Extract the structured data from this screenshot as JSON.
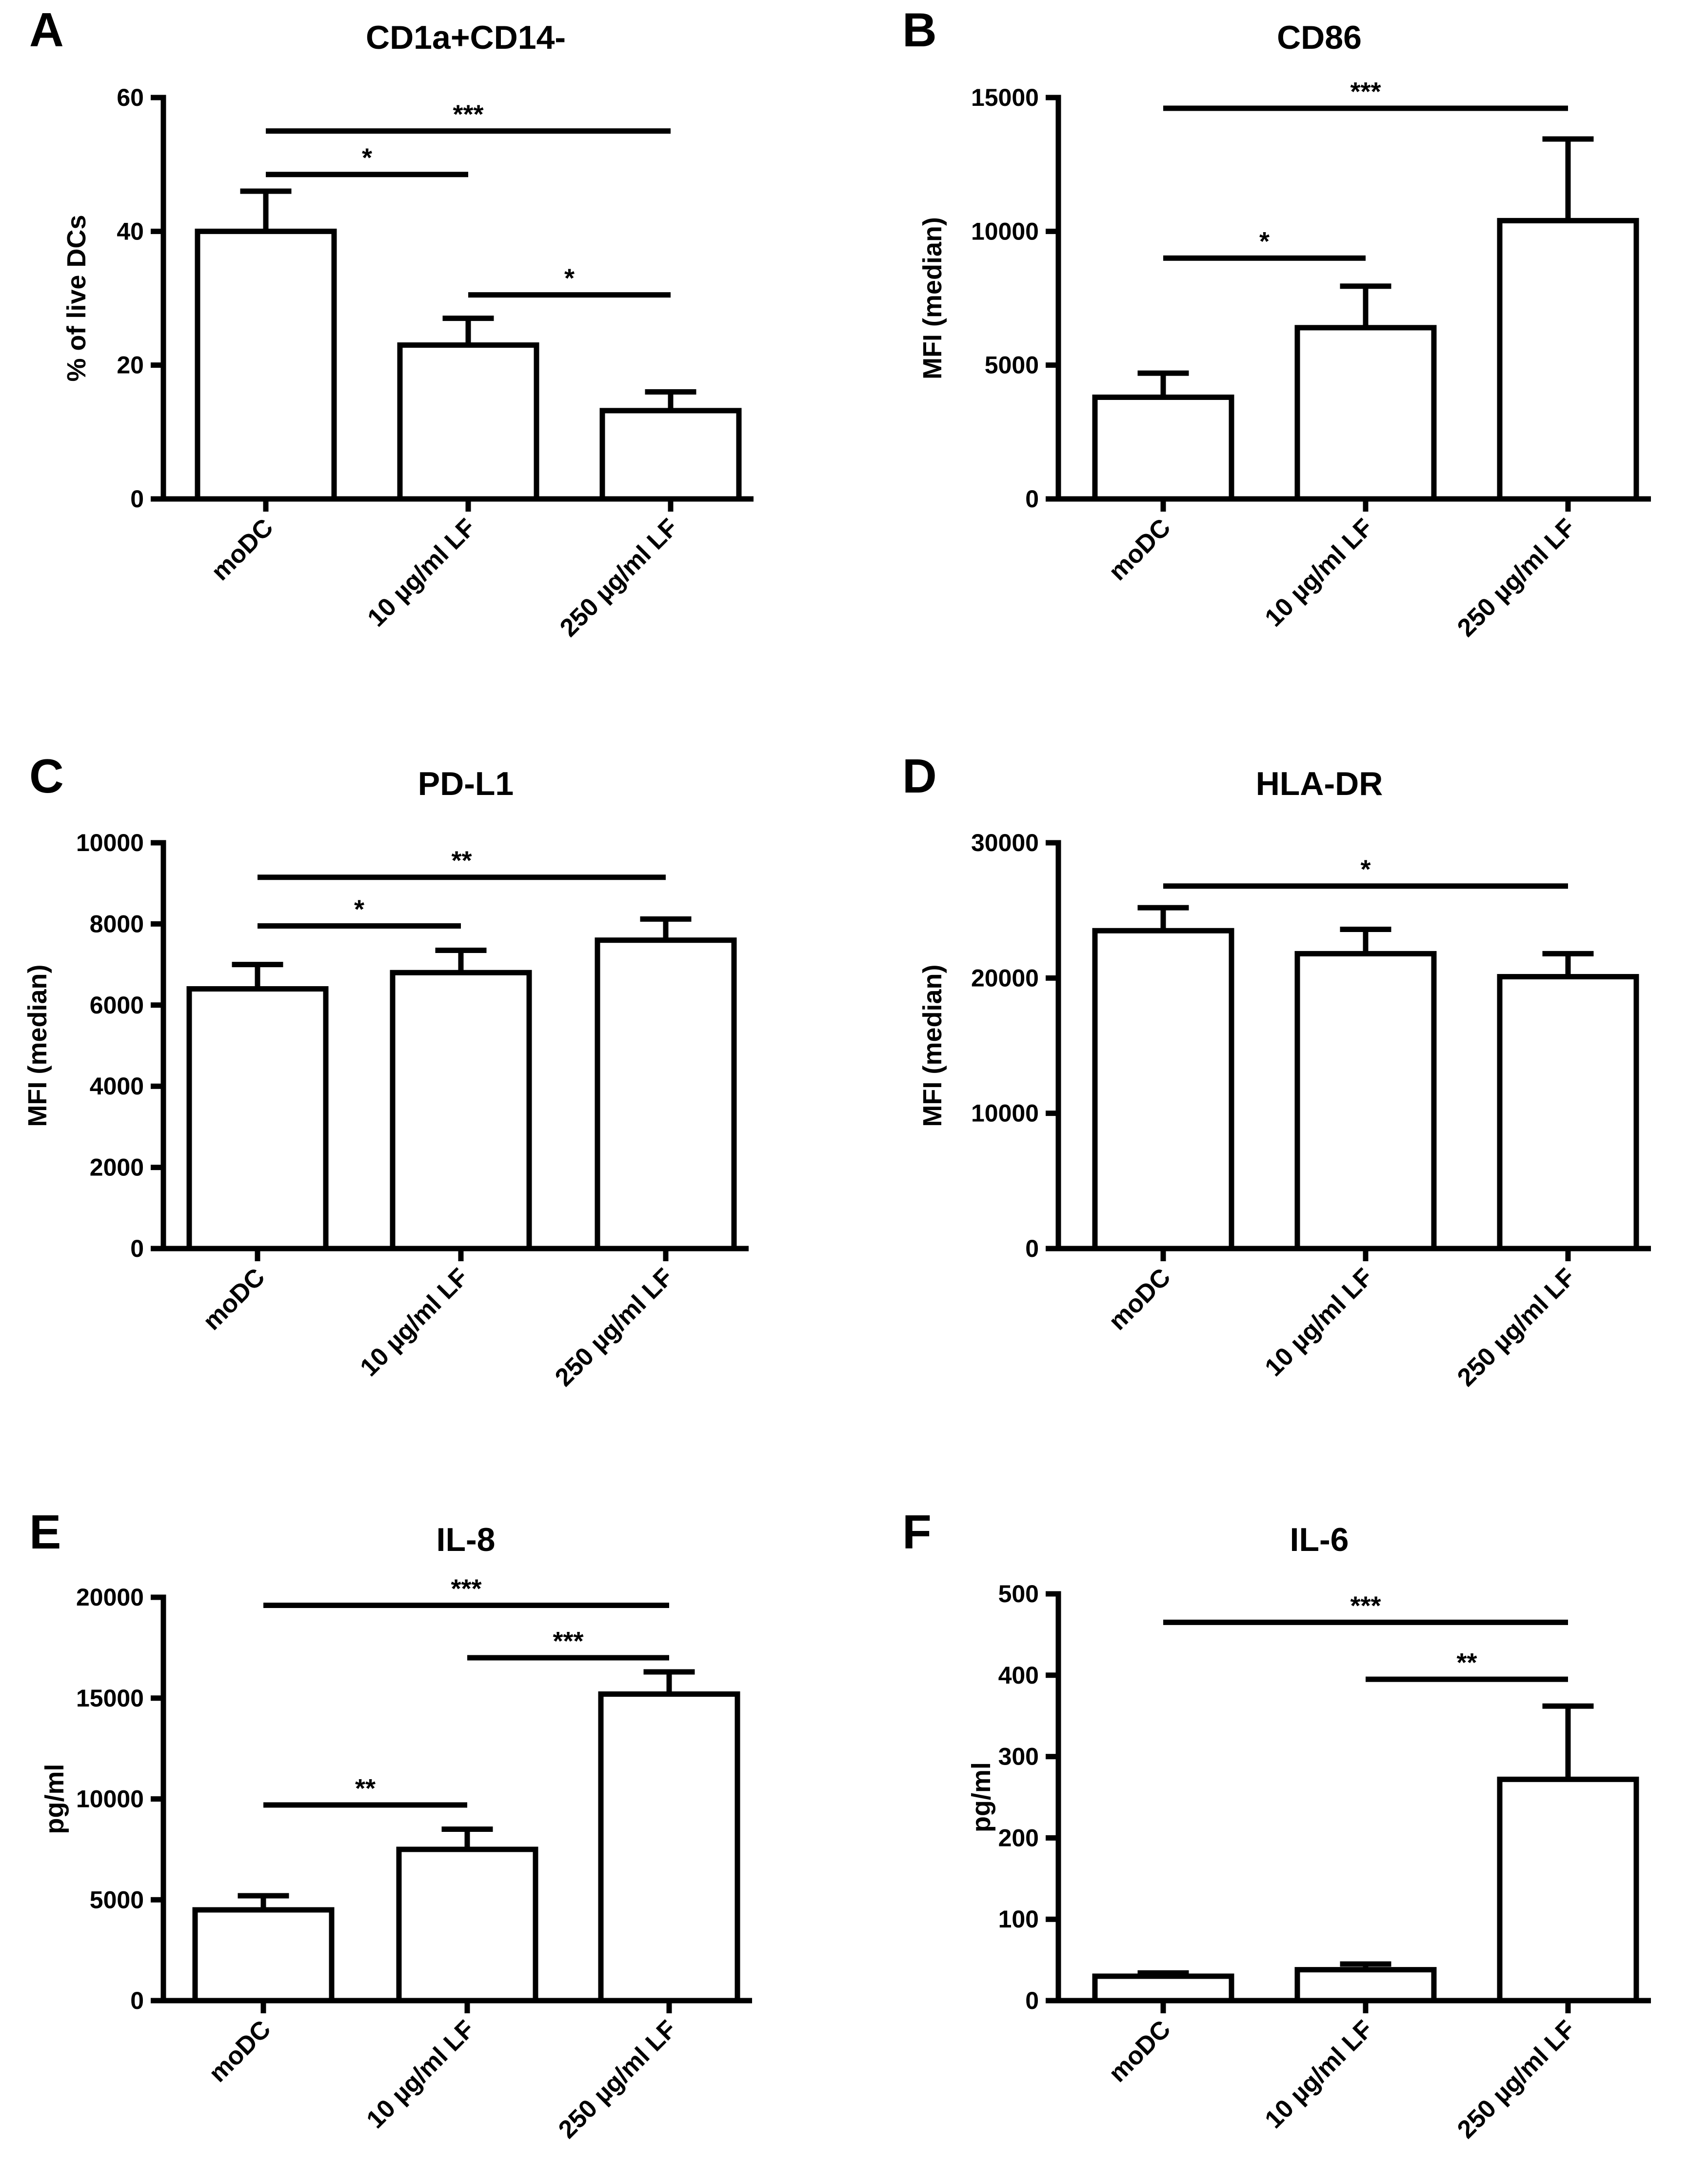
{
  "figure": {
    "colors": {
      "axis": "#000000",
      "bar_fill": "#ffffff",
      "bar_stroke": "#000000",
      "background": "#ffffff"
    }
  },
  "chart_data": [
    {
      "panel": "A",
      "type": "bar",
      "title": "CD1a+CD14-",
      "ylabel": "% of live DCs",
      "categories": [
        "moDC",
        "10  µg/ml LF",
        "250 µg/ml LF"
      ],
      "values": [
        40,
        23,
        13.2
      ],
      "errors": [
        6,
        4,
        2.8
      ],
      "ylim": [
        0,
        60
      ],
      "yticks": [
        0,
        20,
        40,
        60
      ],
      "ytick_labels": [
        "0",
        "20",
        "40",
        "60"
      ],
      "significance": [
        {
          "from": 0,
          "to": 2,
          "y": 55,
          "label": "***"
        },
        {
          "from": 0,
          "to": 1,
          "y": 48.5,
          "label": "*"
        },
        {
          "from": 1,
          "to": 2,
          "y": 30.5,
          "label": "*"
        }
      ]
    },
    {
      "panel": "B",
      "type": "bar",
      "title": "CD86",
      "ylabel": "MFI (median)",
      "categories": [
        "moDC",
        "10 µg/ml LF",
        "250 µg/ml LF"
      ],
      "values": [
        3800,
        6400,
        10400
      ],
      "errors": [
        900,
        1550,
        3050
      ],
      "ylim": [
        0,
        15000
      ],
      "yticks": [
        0,
        5000,
        10000,
        15000
      ],
      "ytick_labels": [
        "0",
        "5000",
        "10000",
        "15000"
      ],
      "significance": [
        {
          "from": 0,
          "to": 2,
          "y": 14600,
          "label": "***"
        },
        {
          "from": 0,
          "to": 1,
          "y": 9000,
          "label": "*"
        }
      ]
    },
    {
      "panel": "C",
      "type": "bar",
      "title": "PD-L1",
      "ylabel": "MFI (median)",
      "categories": [
        "moDC",
        "10 µg/ml LF",
        "250 µg/ml LF"
      ],
      "values": [
        6400,
        6800,
        7600
      ],
      "errors": [
        600,
        550,
        520
      ],
      "ylim": [
        0,
        10000
      ],
      "yticks": [
        0,
        2000,
        4000,
        6000,
        8000,
        10000
      ],
      "ytick_labels": [
        "0",
        "2000",
        "4000",
        "6000",
        "8000",
        "10000"
      ],
      "significance": [
        {
          "from": 0,
          "to": 2,
          "y": 9150,
          "label": "**"
        },
        {
          "from": 0,
          "to": 1,
          "y": 7950,
          "label": "*"
        }
      ]
    },
    {
      "panel": "D",
      "type": "bar",
      "title": "HLA-DR",
      "ylabel": "MFI (median)",
      "categories": [
        "moDC",
        "10 µg/ml LF",
        "250 µg/ml LF"
      ],
      "values": [
        23500,
        21800,
        20100
      ],
      "errors": [
        1700,
        1800,
        1700
      ],
      "ylim": [
        0,
        30000
      ],
      "yticks": [
        0,
        10000,
        20000,
        30000
      ],
      "ytick_labels": [
        "0",
        "10000",
        "20000",
        "30000"
      ],
      "significance": [
        {
          "from": 0,
          "to": 2,
          "y": 26800,
          "label": "*"
        }
      ]
    },
    {
      "panel": "E",
      "type": "bar",
      "title": "IL-8",
      "ylabel": "pg/ml",
      "categories": [
        "moDC",
        "10 µg/ml LF",
        "250 µg/ml LF"
      ],
      "values": [
        4500,
        7500,
        15200
      ],
      "errors": [
        700,
        1000,
        1100
      ],
      "ylim": [
        0,
        20000
      ],
      "yticks": [
        0,
        5000,
        10000,
        15000,
        20000
      ],
      "ytick_labels": [
        "0",
        "5000",
        "10000",
        "15000",
        "20000"
      ],
      "significance": [
        {
          "from": 0,
          "to": 2,
          "y": 19600,
          "label": "***"
        },
        {
          "from": 1,
          "to": 2,
          "y": 17000,
          "label": "***"
        },
        {
          "from": 0,
          "to": 1,
          "y": 9700,
          "label": "**"
        }
      ]
    },
    {
      "panel": "F",
      "type": "bar",
      "title": "IL-6",
      "ylabel": "pg/ml",
      "categories": [
        "moDC",
        "10 µg/ml LF",
        "250 µg/ml LF"
      ],
      "values": [
        30,
        38,
        272
      ],
      "errors": [
        4,
        7,
        90
      ],
      "ylim": [
        0,
        500
      ],
      "yticks": [
        0,
        100,
        200,
        300,
        400,
        500
      ],
      "ytick_labels": [
        "0",
        "100",
        "200",
        "300",
        "400",
        "500"
      ],
      "significance": [
        {
          "from": 0,
          "to": 2,
          "y": 465,
          "label": "***"
        },
        {
          "from": 1,
          "to": 2,
          "y": 395,
          "label": "**"
        }
      ]
    }
  ]
}
